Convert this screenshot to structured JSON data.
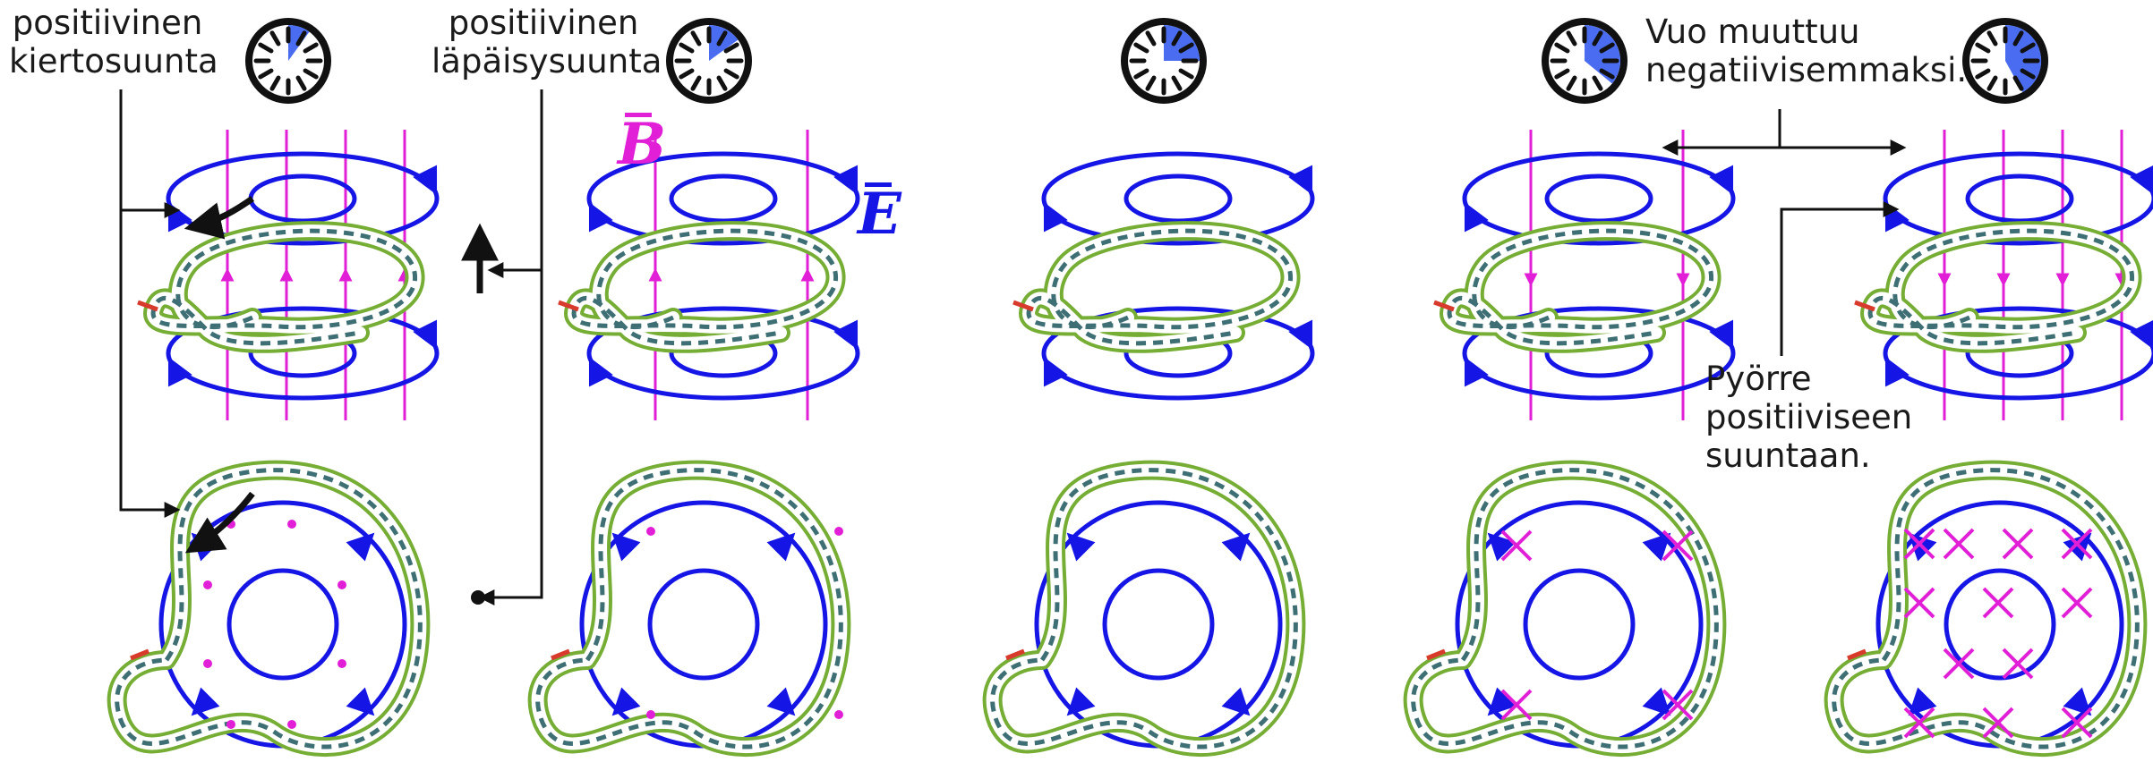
{
  "labels": {
    "rotation_line1": "positiivinen",
    "rotation_line2": "kiertosuunta",
    "through_line1": "positiivinen",
    "through_line2": "läpäisysuunta",
    "flux_line1": "Vuo muuttuu",
    "flux_line2": "negatiivisemmaksi.",
    "vortex_line1": "Pyörre",
    "vortex_line2": "positiiviseen",
    "vortex_line3": "suuntaan."
  },
  "symbols": {
    "B": "B",
    "E": "E"
  },
  "colors": {
    "magnetic_field": "#e11fd6",
    "electric_field": "#1515e6",
    "coil_green": "#76ad34",
    "coil_dash": "#3e6f74",
    "wire_grey": "#8c8c8c",
    "wire_red": "#d83a2c",
    "clock_fill": "#4a6cf0",
    "ink": "#111111"
  },
  "icons": [
    "clock-icon",
    "curved-arrow-icon",
    "up-arrow-icon",
    "dot-symbol-icon",
    "cross-symbol-icon"
  ],
  "clocks": [
    {
      "fraction": 0.1
    },
    {
      "fraction": 0.15
    },
    {
      "fraction": 0.25
    },
    {
      "fraction": 0.36
    },
    {
      "fraction": 0.42
    }
  ],
  "panels": [
    {
      "b_direction": "up",
      "b_markers": "dot",
      "field_strength": "strong"
    },
    {
      "b_direction": "up",
      "b_markers": "dot",
      "field_strength": "weak"
    },
    {
      "b_direction": "none",
      "b_markers": "none",
      "field_strength": "zero"
    },
    {
      "b_direction": "down",
      "b_markers": "cross",
      "field_strength": "weak"
    },
    {
      "b_direction": "down",
      "b_markers": "cross",
      "field_strength": "strong"
    }
  ]
}
